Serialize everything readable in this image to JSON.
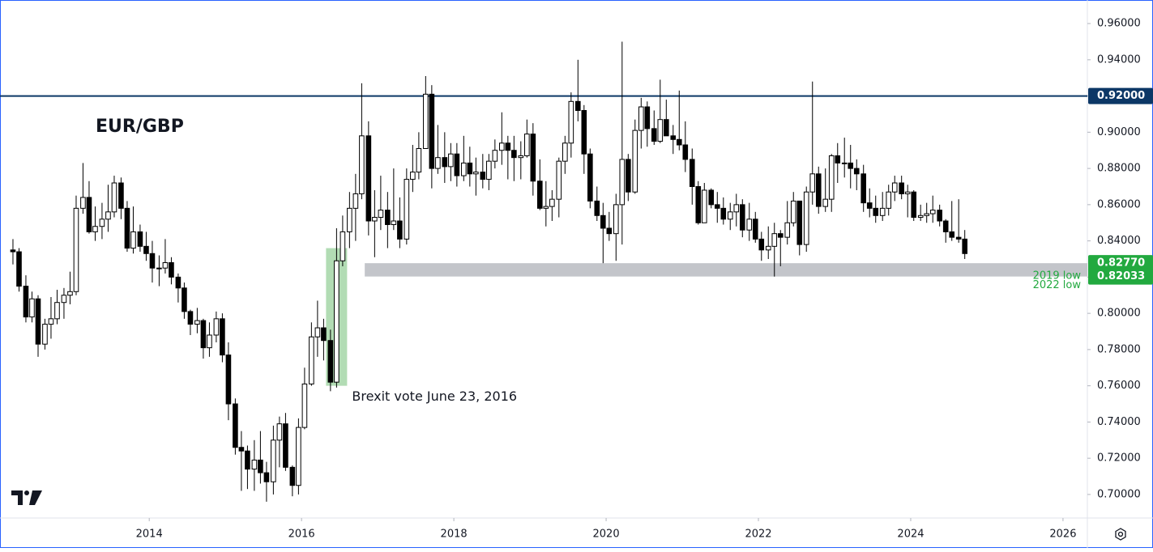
{
  "chart_data": {
    "type": "candlestick",
    "title": "EUR/GBP",
    "xlim": [
      2012.04,
      2026.32
    ],
    "xticks": [
      2014,
      2016,
      2018,
      2020,
      2022,
      2024,
      2026
    ],
    "ylim": [
      0.687,
      0.973
    ],
    "yticks": [
      {
        "value": 0.7,
        "label": "0.70000"
      },
      {
        "value": 0.72,
        "label": "0.72000"
      },
      {
        "value": 0.74,
        "label": "0.74000"
      },
      {
        "value": 0.76,
        "label": "0.76000"
      },
      {
        "value": 0.78,
        "label": "0.78000"
      },
      {
        "value": 0.8,
        "label": "0.80000"
      },
      {
        "value": 0.82,
        "label": "0.82000"
      },
      {
        "value": 0.84,
        "label": "0.84000"
      },
      {
        "value": 0.86,
        "label": "0.86000"
      },
      {
        "value": 0.88,
        "label": "0.88000"
      },
      {
        "value": 0.9,
        "label": "0.90000"
      },
      {
        "value": 0.92,
        "label": "0.92000"
      },
      {
        "value": 0.94,
        "label": "0.94000"
      },
      {
        "value": 0.96,
        "label": "0.96000"
      }
    ],
    "grid": false,
    "up_color": "#ffffff",
    "down_color": "#000000",
    "x": [
      2012.21,
      2012.29,
      2012.38,
      2012.46,
      2012.54,
      2012.63,
      2012.71,
      2012.79,
      2012.88,
      2012.96,
      2013.04,
      2013.13,
      2013.21,
      2013.29,
      2013.38,
      2013.46,
      2013.54,
      2013.63,
      2013.71,
      2013.79,
      2013.88,
      2013.96,
      2014.04,
      2014.13,
      2014.21,
      2014.29,
      2014.38,
      2014.46,
      2014.54,
      2014.63,
      2014.71,
      2014.79,
      2014.88,
      2014.96,
      2015.04,
      2015.13,
      2015.21,
      2015.29,
      2015.38,
      2015.46,
      2015.54,
      2015.63,
      2015.71,
      2015.79,
      2015.88,
      2015.96,
      2016.04,
      2016.13,
      2016.21,
      2016.29,
      2016.38,
      2016.46,
      2016.54,
      2016.63,
      2016.71,
      2016.79,
      2016.88,
      2016.96,
      2017.04,
      2017.13,
      2017.21,
      2017.29,
      2017.38,
      2017.46,
      2017.54,
      2017.63,
      2017.71,
      2017.79,
      2017.88,
      2017.96,
      2018.04,
      2018.13,
      2018.21,
      2018.29,
      2018.38,
      2018.46,
      2018.54,
      2018.63,
      2018.71,
      2018.79,
      2018.88,
      2018.96,
      2019.04,
      2019.13,
      2019.21,
      2019.29,
      2019.38,
      2019.46,
      2019.54,
      2019.63,
      2019.71,
      2019.79,
      2019.88,
      2019.96,
      2020.04,
      2020.13,
      2020.21,
      2020.29,
      2020.38,
      2020.46,
      2020.54,
      2020.63,
      2020.71,
      2020.79,
      2020.88,
      2020.96,
      2021.04,
      2021.13,
      2021.21,
      2021.29,
      2021.38,
      2021.46,
      2021.54,
      2021.63,
      2021.71,
      2021.79,
      2021.88,
      2021.96,
      2022.04,
      2022.13,
      2022.21,
      2022.29,
      2022.38,
      2022.46,
      2022.54,
      2022.63,
      2022.71,
      2022.79,
      2022.88,
      2022.96,
      2023.04,
      2023.13,
      2023.21,
      2023.29,
      2023.38,
      2023.46,
      2023.54,
      2023.63,
      2023.71,
      2023.79,
      2023.88,
      2023.96,
      2024.04,
      2024.13,
      2024.21,
      2024.29,
      2024.38,
      2024.46,
      2024.54,
      2024.63,
      2024.71
    ],
    "open": [
      0.835,
      0.834,
      0.815,
      0.798,
      0.808,
      0.783,
      0.794,
      0.797,
      0.806,
      0.81,
      0.812,
      0.858,
      0.864,
      0.845,
      0.848,
      0.852,
      0.856,
      0.872,
      0.858,
      0.836,
      0.845,
      0.837,
      0.833,
      0.825,
      0.825,
      0.828,
      0.82,
      0.814,
      0.801,
      0.794,
      0.796,
      0.781,
      0.788,
      0.797,
      0.777,
      0.75,
      0.726,
      0.724,
      0.714,
      0.719,
      0.712,
      0.707,
      0.73,
      0.739,
      0.715,
      0.705,
      0.737,
      0.761,
      0.787,
      0.792,
      0.785,
      0.762,
      0.829,
      0.845,
      0.858,
      0.866,
      0.898,
      0.851,
      0.853,
      0.857,
      0.849,
      0.851,
      0.841,
      0.874,
      0.878,
      0.891,
      0.921,
      0.88,
      0.886,
      0.881,
      0.888,
      0.876,
      0.883,
      0.877,
      0.878,
      0.874,
      0.884,
      0.89,
      0.894,
      0.89,
      0.886,
      0.887,
      0.899,
      0.873,
      0.858,
      0.859,
      0.863,
      0.884,
      0.894,
      0.917,
      0.912,
      0.888,
      0.862,
      0.854,
      0.847,
      0.844,
      0.86,
      0.885,
      0.867,
      0.901,
      0.914,
      0.902,
      0.895,
      0.907,
      0.898,
      0.896,
      0.893,
      0.885,
      0.87,
      0.85,
      0.868,
      0.86,
      0.858,
      0.852,
      0.856,
      0.86,
      0.846,
      0.852,
      0.841,
      0.835,
      0.837,
      0.844,
      0.842,
      0.85,
      0.862,
      0.838,
      0.867,
      0.877,
      0.859,
      0.863,
      0.887,
      0.883,
      0.883,
      0.88,
      0.877,
      0.861,
      0.858,
      0.854,
      0.858,
      0.867,
      0.872,
      0.866,
      0.867,
      0.853,
      0.854,
      0.855,
      0.857,
      0.851,
      0.845,
      0.842,
      0.841
    ],
    "high": [
      0.841,
      0.836,
      0.821,
      0.812,
      0.81,
      0.797,
      0.809,
      0.813,
      0.814,
      0.823,
      0.865,
      0.883,
      0.873,
      0.859,
      0.861,
      0.871,
      0.876,
      0.875,
      0.862,
      0.859,
      0.849,
      0.845,
      0.84,
      0.832,
      0.841,
      0.831,
      0.822,
      0.817,
      0.802,
      0.803,
      0.797,
      0.795,
      0.801,
      0.8,
      0.784,
      0.753,
      0.735,
      0.727,
      0.73,
      0.735,
      0.718,
      0.738,
      0.743,
      0.745,
      0.716,
      0.742,
      0.77,
      0.795,
      0.807,
      0.797,
      0.791,
      0.847,
      0.854,
      0.867,
      0.877,
      0.927,
      0.906,
      0.868,
      0.876,
      0.867,
      0.88,
      0.864,
      0.88,
      0.893,
      0.9,
      0.931,
      0.926,
      0.904,
      0.9,
      0.894,
      0.894,
      0.898,
      0.892,
      0.886,
      0.888,
      0.888,
      0.896,
      0.911,
      0.898,
      0.898,
      0.895,
      0.907,
      0.905,
      0.885,
      0.873,
      0.868,
      0.886,
      0.898,
      0.922,
      0.94,
      0.915,
      0.891,
      0.87,
      0.861,
      0.856,
      0.866,
      0.95,
      0.888,
      0.907,
      0.919,
      0.917,
      0.912,
      0.929,
      0.918,
      0.904,
      0.923,
      0.906,
      0.891,
      0.873,
      0.872,
      0.869,
      0.867,
      0.864,
      0.861,
      0.866,
      0.863,
      0.861,
      0.856,
      0.845,
      0.848,
      0.85,
      0.846,
      0.862,
      0.867,
      0.862,
      0.87,
      0.928,
      0.881,
      0.88,
      0.888,
      0.894,
      0.897,
      0.893,
      0.885,
      0.882,
      0.869,
      0.865,
      0.867,
      0.871,
      0.876,
      0.876,
      0.871,
      0.868,
      0.86,
      0.861,
      0.865,
      0.86,
      0.852,
      0.862,
      0.863,
      0.846
    ],
    "low": [
      0.827,
      0.812,
      0.795,
      0.795,
      0.776,
      0.78,
      0.786,
      0.794,
      0.797,
      0.805,
      0.81,
      0.855,
      0.844,
      0.84,
      0.841,
      0.845,
      0.853,
      0.852,
      0.834,
      0.833,
      0.834,
      0.829,
      0.817,
      0.815,
      0.822,
      0.816,
      0.806,
      0.797,
      0.788,
      0.789,
      0.775,
      0.776,
      0.784,
      0.773,
      0.741,
      0.722,
      0.702,
      0.703,
      0.702,
      0.706,
      0.696,
      0.7,
      0.715,
      0.713,
      0.699,
      0.7,
      0.736,
      0.76,
      0.776,
      0.774,
      0.757,
      0.759,
      0.826,
      0.836,
      0.84,
      0.863,
      0.843,
      0.831,
      0.846,
      0.836,
      0.846,
      0.836,
      0.838,
      0.867,
      0.874,
      0.891,
      0.869,
      0.877,
      0.872,
      0.873,
      0.87,
      0.873,
      0.87,
      0.865,
      0.869,
      0.868,
      0.88,
      0.882,
      0.874,
      0.873,
      0.874,
      0.886,
      0.865,
      0.857,
      0.848,
      0.851,
      0.853,
      0.877,
      0.886,
      0.906,
      0.877,
      0.858,
      0.851,
      0.8277,
      0.84,
      0.829,
      0.838,
      0.862,
      0.866,
      0.891,
      0.892,
      0.893,
      0.894,
      0.899,
      0.888,
      0.89,
      0.878,
      0.86,
      0.849,
      0.85,
      0.858,
      0.85,
      0.849,
      0.846,
      0.848,
      0.842,
      0.84,
      0.839,
      0.829,
      0.83,
      0.8203,
      0.826,
      0.838,
      0.848,
      0.832,
      0.834,
      0.86,
      0.855,
      0.856,
      0.856,
      0.872,
      0.875,
      0.869,
      0.868,
      0.856,
      0.853,
      0.85,
      0.851,
      0.854,
      0.862,
      0.863,
      0.853,
      0.851,
      0.851,
      0.85,
      0.85,
      0.848,
      0.839,
      0.84,
      0.839,
      0.83
    ],
    "close": [
      0.834,
      0.815,
      0.798,
      0.808,
      0.783,
      0.794,
      0.797,
      0.806,
      0.81,
      0.812,
      0.858,
      0.864,
      0.845,
      0.848,
      0.852,
      0.856,
      0.872,
      0.858,
      0.836,
      0.845,
      0.837,
      0.833,
      0.825,
      0.825,
      0.828,
      0.82,
      0.814,
      0.801,
      0.794,
      0.796,
      0.781,
      0.788,
      0.797,
      0.777,
      0.75,
      0.726,
      0.724,
      0.714,
      0.719,
      0.712,
      0.707,
      0.73,
      0.739,
      0.715,
      0.705,
      0.737,
      0.761,
      0.787,
      0.792,
      0.785,
      0.762,
      0.829,
      0.845,
      0.858,
      0.866,
      0.898,
      0.851,
      0.853,
      0.857,
      0.849,
      0.851,
      0.841,
      0.874,
      0.878,
      0.891,
      0.921,
      0.88,
      0.886,
      0.881,
      0.888,
      0.876,
      0.883,
      0.877,
      0.878,
      0.874,
      0.884,
      0.89,
      0.894,
      0.89,
      0.886,
      0.887,
      0.899,
      0.873,
      0.858,
      0.859,
      0.863,
      0.884,
      0.894,
      0.917,
      0.912,
      0.888,
      0.862,
      0.854,
      0.847,
      0.844,
      0.86,
      0.885,
      0.867,
      0.901,
      0.914,
      0.902,
      0.895,
      0.907,
      0.898,
      0.896,
      0.893,
      0.885,
      0.87,
      0.85,
      0.868,
      0.86,
      0.858,
      0.852,
      0.856,
      0.86,
      0.846,
      0.852,
      0.841,
      0.835,
      0.837,
      0.844,
      0.842,
      0.85,
      0.862,
      0.838,
      0.867,
      0.877,
      0.859,
      0.863,
      0.887,
      0.883,
      0.883,
      0.88,
      0.877,
      0.861,
      0.858,
      0.854,
      0.858,
      0.867,
      0.872,
      0.866,
      0.867,
      0.853,
      0.854,
      0.855,
      0.857,
      0.851,
      0.845,
      0.842,
      0.841,
      0.833
    ],
    "hline": {
      "value": 0.92,
      "label": "0.92000",
      "color": "#0c3766"
    },
    "zone": {
      "x_start": 2016.83,
      "color": "#c3c5ca",
      "tag_color": "#22a93f",
      "high": {
        "value": 0.8277,
        "label": "0.82770",
        "name": "2019 low"
      },
      "low": {
        "value": 0.82033,
        "label": "0.82033",
        "name": "2022 low"
      }
    },
    "highlight": {
      "text": "Brexit vote June 23, 2016",
      "x": 2016.46,
      "ylim": [
        0.76,
        0.836
      ],
      "color": "#a5d6a7"
    }
  }
}
